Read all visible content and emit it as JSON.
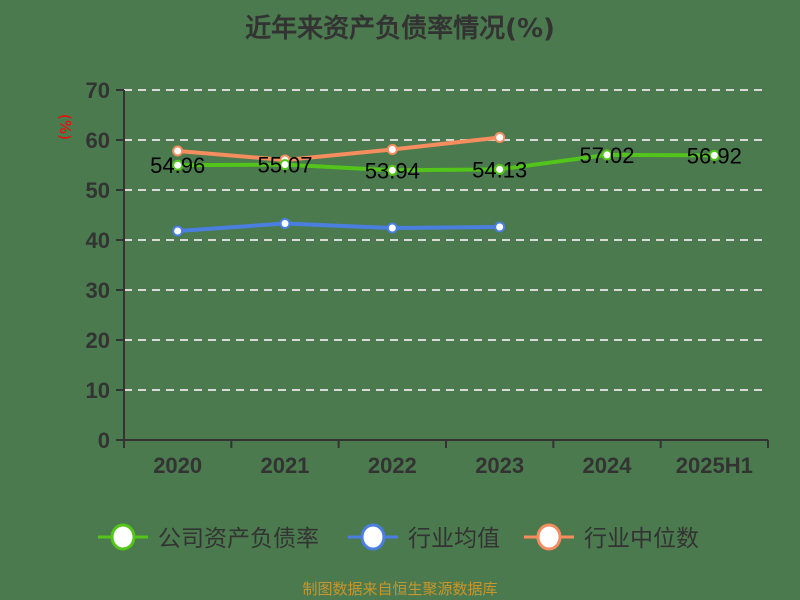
{
  "title": "近年来资产负债率情况(%)",
  "source": "制图数据来自恒生聚源数据库",
  "chart_data": {
    "type": "line",
    "title": "近年来资产负债率情况(%)",
    "xlabel": "",
    "ylabel": "(%)",
    "ylim": [
      0,
      70
    ],
    "yticks": [
      0,
      10,
      20,
      30,
      40,
      50,
      60,
      70
    ],
    "grid": true,
    "legend_position": "bottom",
    "categories": [
      "2020",
      "2021",
      "2022",
      "2023",
      "2024",
      "2025H1"
    ],
    "series": [
      {
        "name": "公司资产负债率",
        "color": "#52c41a",
        "values": [
          54.96,
          55.07,
          53.94,
          54.13,
          57.02,
          56.92
        ],
        "labels": [
          "54.96",
          "55.07",
          "53.94",
          "54.13",
          "57.02",
          "56.92"
        ]
      },
      {
        "name": "行业均值",
        "color": "#4a7fe0",
        "values": [
          41.8,
          43.3,
          42.4,
          42.6,
          null,
          null
        ]
      },
      {
        "name": "行业中位数",
        "color": "#f58d5f",
        "values": [
          57.8,
          56.0,
          58.1,
          60.5,
          null,
          null
        ]
      }
    ]
  }
}
